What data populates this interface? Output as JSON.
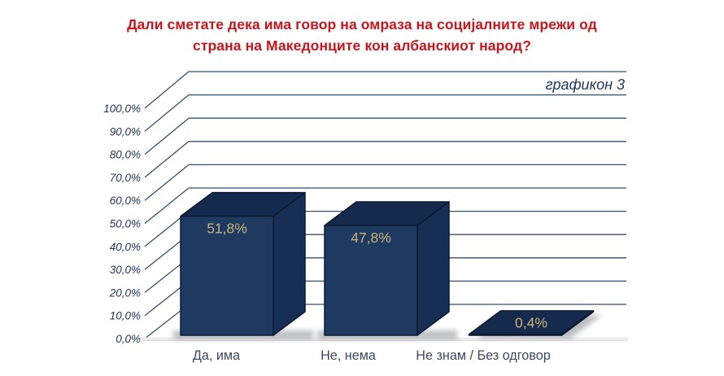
{
  "title": {
    "line1": "Дали сметате дека има говор на омраза на социјалните мрежи од",
    "line2": "страна на Македонците кон албанскиот народ?"
  },
  "annotation": "графикон 3",
  "chart_data": {
    "type": "bar",
    "style": "3d-column",
    "title": "Дали сметате дека има говор на омраза на социјалните мрежи од страна на Македонците кон албанскиот народ?",
    "annotation": "графикон 3",
    "categories": [
      "Да, има",
      "Не, нема",
      "Не знам / Без одговор"
    ],
    "values": [
      51.8,
      47.8,
      0.4
    ],
    "value_labels": [
      "51,8%",
      "47,8%",
      "0,4%"
    ],
    "ylim": [
      0,
      100
    ],
    "ytick_step": 10,
    "ytick_labels": [
      "0,0%",
      "10,0%",
      "20,0%",
      "30,0%",
      "40,0%",
      "50,0%",
      "60,0%",
      "70,0%",
      "80,0%",
      "90,0%",
      "100,0%"
    ],
    "xlabel": "",
    "ylabel": "",
    "legend": "none",
    "grid": true
  },
  "colors": {
    "background": "#FFFFFF",
    "title_red": "#C4161C",
    "bar_front": "#1F3A60",
    "bar_top": "#152A4C",
    "bar_side": "#182F55",
    "bar_outline": "#0C1A30",
    "value_label_gold": "#C8B478",
    "gridline": "#35506B",
    "axis_text": "#22355A",
    "category_text": "#3A4A61",
    "annotation_text": "#1F3864",
    "floor": "#ECECEC",
    "floor_edge": "#D9D9D9",
    "shadow": "#85898F"
  }
}
